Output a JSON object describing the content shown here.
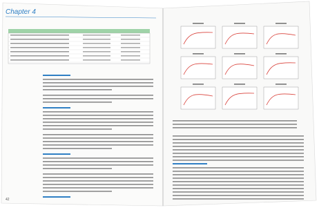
{
  "header": {
    "chapter": "Chapter 4"
  },
  "footer": {
    "page_number": "42"
  }
}
